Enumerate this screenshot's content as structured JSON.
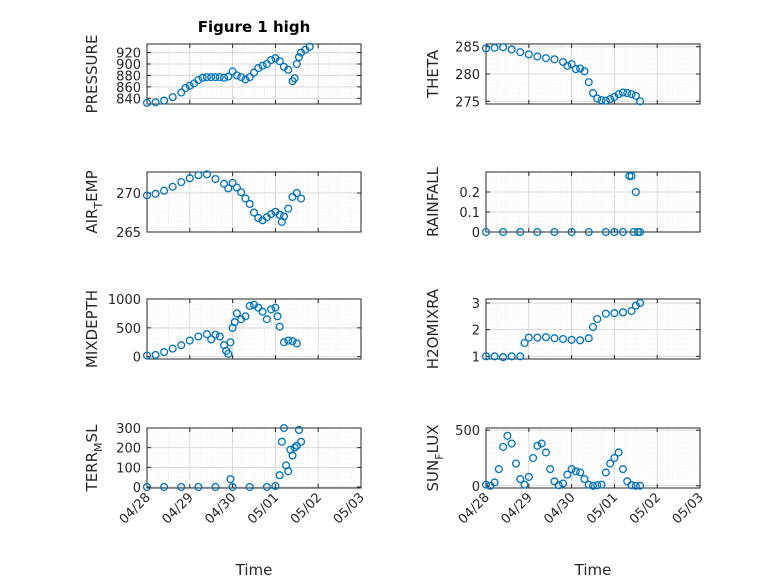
{
  "chart_data": [
    {
      "type": "scatter",
      "title": "Figure 1 high",
      "ylabel": "PRESSURE",
      "xlabel": "",
      "xlim": [
        "04/28",
        "05/03"
      ],
      "ylim": [
        830,
        935
      ],
      "yticks": [
        "840",
        "860",
        "880",
        "900",
        "920"
      ],
      "xticks": [],
      "grid": true,
      "series": [
        {
          "x": [
            0.0,
            0.2,
            0.4,
            0.6,
            0.8,
            0.9,
            1.0,
            1.1,
            1.2,
            1.3,
            1.4,
            1.5,
            1.6,
            1.7,
            1.8,
            1.9,
            2.0,
            2.1,
            2.2,
            2.3,
            2.4,
            2.5,
            2.6,
            2.7,
            2.8,
            2.9,
            3.0,
            3.1,
            3.2,
            3.3,
            3.4,
            3.45,
            3.5,
            3.55,
            3.6,
            3.7,
            3.8
          ],
          "y": [
            832,
            833,
            836,
            842,
            850,
            858,
            862,
            866,
            872,
            876,
            877,
            877,
            877,
            877,
            876,
            878,
            887,
            880,
            877,
            873,
            877,
            885,
            893,
            897,
            900,
            907,
            910,
            905,
            895,
            890,
            870,
            875,
            900,
            912,
            920,
            925,
            930
          ]
        }
      ]
    },
    {
      "type": "scatter",
      "title": "",
      "ylabel": "THETA",
      "xlabel": "",
      "xlim": [
        "04/28",
        "05/03"
      ],
      "ylim": [
        274.5,
        285.5
      ],
      "yticks": [
        "275",
        "280",
        "285"
      ],
      "xticks": [],
      "grid": true,
      "series": [
        {
          "x": [
            0.0,
            0.2,
            0.4,
            0.6,
            0.8,
            1.0,
            1.2,
            1.4,
            1.6,
            1.8,
            1.9,
            2.0,
            2.1,
            2.2,
            2.3,
            2.4,
            2.5,
            2.6,
            2.7,
            2.8,
            2.9,
            3.0,
            3.1,
            3.2,
            3.3,
            3.4,
            3.5,
            3.6
          ],
          "y": [
            284.7,
            284.8,
            284.9,
            284.5,
            284.0,
            283.6,
            283.2,
            282.9,
            282.7,
            282.2,
            281.5,
            281.8,
            280.9,
            281.0,
            280.5,
            278.5,
            276.5,
            275.5,
            275.2,
            275.1,
            275.4,
            275.8,
            276.3,
            276.6,
            276.5,
            276.3,
            276.0,
            275.0
          ]
        }
      ]
    },
    {
      "type": "scatter",
      "title": "",
      "ylabel": "AIR_TEMP",
      "xlabel": "",
      "xlim": [
        "04/28",
        "05/03"
      ],
      "ylim": [
        265,
        272.7
      ],
      "yticks": [
        "265",
        "270"
      ],
      "xticks": [],
      "grid": true,
      "series": [
        {
          "x": [
            0.0,
            0.2,
            0.4,
            0.6,
            0.8,
            1.0,
            1.2,
            1.4,
            1.6,
            1.8,
            1.9,
            2.0,
            2.1,
            2.2,
            2.3,
            2.4,
            2.5,
            2.6,
            2.7,
            2.8,
            2.9,
            3.0,
            3.1,
            3.15,
            3.2,
            3.3,
            3.4,
            3.5,
            3.6
          ],
          "y": [
            269.7,
            269.9,
            270.3,
            270.8,
            271.4,
            271.9,
            272.3,
            272.4,
            271.8,
            271.2,
            270.6,
            271.3,
            270.7,
            270.1,
            269.3,
            268.6,
            267.5,
            266.8,
            266.5,
            266.9,
            267.3,
            267.6,
            267.2,
            266.3,
            267.0,
            268.0,
            269.5,
            270.0,
            269.3
          ]
        }
      ]
    },
    {
      "type": "scatter",
      "title": "",
      "ylabel": "RAINFALL",
      "xlabel": "",
      "xlim": [
        "04/28",
        "05/03"
      ],
      "ylim": [
        0,
        0.3
      ],
      "yticks": [
        "0",
        "0.1",
        "0.2"
      ],
      "xticks": [],
      "grid": true,
      "series": [
        {
          "x": [
            0.0,
            0.4,
            0.8,
            1.2,
            1.6,
            2.0,
            2.4,
            2.8,
            3.0,
            3.2,
            3.35,
            3.4,
            3.45,
            3.5,
            3.55,
            3.6
          ],
          "y": [
            0,
            0,
            0,
            0,
            0,
            0,
            0,
            0,
            0,
            0,
            0.28,
            0.28,
            0,
            0.2,
            0,
            0
          ]
        }
      ]
    },
    {
      "type": "scatter",
      "title": "",
      "ylabel": "MIXDEPTH",
      "xlabel": "",
      "xlim": [
        "04/28",
        "05/03"
      ],
      "ylim": [
        -40,
        1000
      ],
      "yticks": [
        "0",
        "500",
        "1000"
      ],
      "xticks": [],
      "grid": true,
      "series": [
        {
          "x": [
            0.0,
            0.2,
            0.4,
            0.6,
            0.8,
            1.0,
            1.2,
            1.4,
            1.5,
            1.6,
            1.7,
            1.8,
            1.85,
            1.9,
            1.95,
            2.0,
            2.05,
            2.1,
            2.2,
            2.3,
            2.4,
            2.5,
            2.6,
            2.7,
            2.8,
            2.9,
            3.0,
            3.05,
            3.1,
            3.2,
            3.3,
            3.4,
            3.5
          ],
          "y": [
            20,
            30,
            80,
            140,
            200,
            280,
            350,
            390,
            300,
            380,
            350,
            200,
            100,
            50,
            250,
            500,
            600,
            750,
            650,
            700,
            880,
            900,
            850,
            780,
            650,
            820,
            850,
            700,
            520,
            250,
            280,
            270,
            230
          ]
        }
      ]
    },
    {
      "type": "scatter",
      "title": "",
      "ylabel": "H2OMIXRA",
      "xlabel": "",
      "xlim": [
        "04/28",
        "05/03"
      ],
      "ylim": [
        0.9,
        3.15
      ],
      "yticks": [
        "1",
        "2",
        "3"
      ],
      "xticks": [],
      "grid": true,
      "series": [
        {
          "x": [
            0.0,
            0.2,
            0.4,
            0.6,
            0.8,
            0.9,
            1.0,
            1.2,
            1.4,
            1.6,
            1.8,
            2.0,
            2.2,
            2.4,
            2.5,
            2.6,
            2.8,
            3.0,
            3.2,
            3.4,
            3.5,
            3.6
          ],
          "y": [
            1.0,
            1.0,
            0.97,
            1.0,
            1.0,
            1.5,
            1.7,
            1.7,
            1.72,
            1.68,
            1.65,
            1.62,
            1.6,
            1.68,
            2.1,
            2.4,
            2.6,
            2.62,
            2.65,
            2.7,
            2.9,
            3.0
          ]
        }
      ]
    },
    {
      "type": "scatter",
      "title": "",
      "ylabel": "TERR_MSL",
      "xlabel": "Time",
      "xlim": [
        "04/28",
        "05/03"
      ],
      "ylim": [
        -5,
        300
      ],
      "yticks": [
        "0",
        "100",
        "200",
        "300"
      ],
      "xticks": [
        "04/28",
        "04/29",
        "04/30",
        "05/01",
        "05/02",
        "05/03"
      ],
      "grid": true,
      "series": [
        {
          "x": [
            0.0,
            0.4,
            0.8,
            1.2,
            1.6,
            2.0,
            2.4,
            2.8,
            3.0,
            3.1,
            3.15,
            3.2,
            3.25,
            3.3,
            3.35,
            3.4,
            3.45,
            3.5,
            3.55,
            3.6,
            1.95
          ],
          "y": [
            0,
            0,
            0,
            0,
            0,
            0,
            0,
            0,
            5,
            60,
            230,
            300,
            110,
            80,
            190,
            160,
            200,
            210,
            290,
            230,
            40
          ]
        }
      ]
    },
    {
      "type": "scatter",
      "title": "",
      "ylabel": "SUN_FLUX",
      "xlabel": "Time",
      "xlim": [
        "04/28",
        "05/03"
      ],
      "ylim": [
        -20,
        520
      ],
      "yticks": [
        "0",
        "500"
      ],
      "xticks": [
        "04/28",
        "04/29",
        "04/30",
        "05/01",
        "05/02",
        "05/03"
      ],
      "grid": true,
      "series": [
        {
          "x": [
            0.0,
            0.1,
            0.2,
            0.3,
            0.4,
            0.5,
            0.6,
            0.7,
            0.8,
            0.9,
            1.0,
            1.1,
            1.2,
            1.3,
            1.4,
            1.5,
            1.6,
            1.7,
            1.8,
            1.9,
            2.0,
            2.1,
            2.2,
            2.3,
            2.4,
            2.5,
            2.6,
            2.7,
            2.8,
            2.9,
            3.0,
            3.1,
            3.2,
            3.3,
            3.4,
            3.5,
            3.6
          ],
          "y": [
            10,
            0,
            30,
            150,
            350,
            450,
            380,
            200,
            60,
            10,
            80,
            250,
            360,
            380,
            300,
            150,
            40,
            5,
            20,
            100,
            150,
            130,
            120,
            60,
            10,
            0,
            5,
            10,
            120,
            200,
            250,
            300,
            150,
            40,
            5,
            0,
            0
          ]
        }
      ]
    }
  ]
}
